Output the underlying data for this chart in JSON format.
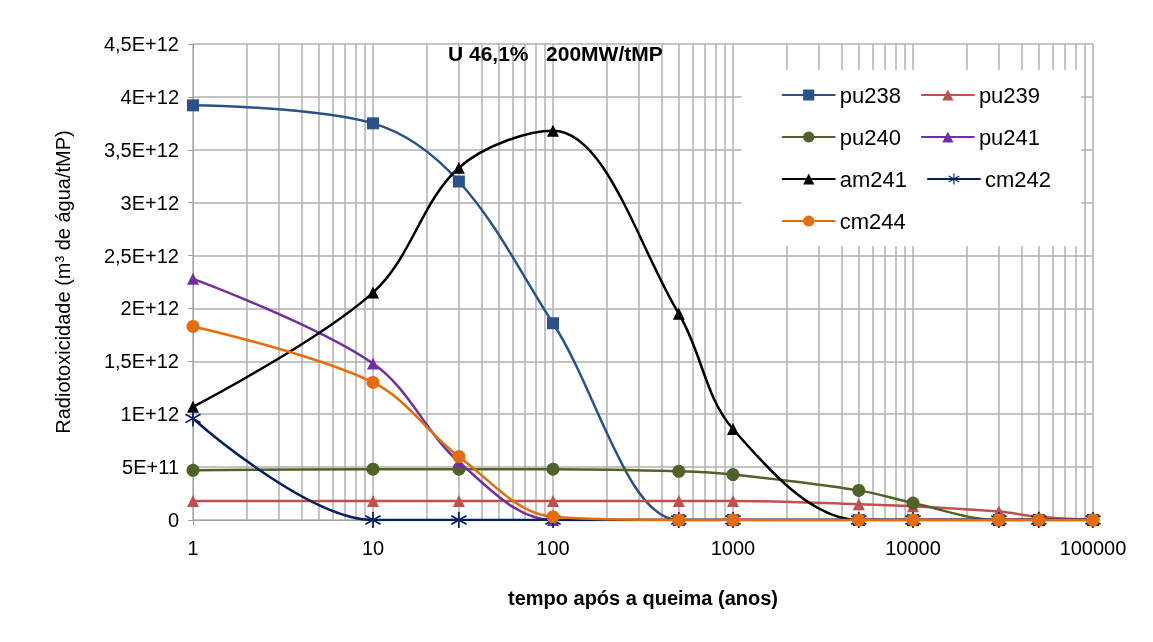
{
  "chart_data": {
    "type": "line",
    "title": "U 46,1%   200MW/tMP",
    "xlabel": "tempo após a queima (anos)",
    "ylabel": "Radiotoxicidade (m³ de água/tMP)",
    "x": [
      1,
      10,
      30,
      100,
      500,
      1000,
      5000,
      10000,
      30000,
      50000,
      100000
    ],
    "series": [
      {
        "name": "pu238",
        "color": "#2a5289",
        "marker": "square",
        "values": [
          3920000000000.0,
          3750000000000.0,
          3200000000000.0,
          1860000000000.0,
          0,
          0,
          0,
          0,
          0,
          0,
          0
        ]
      },
      {
        "name": "pu239",
        "color": "#c0504d",
        "marker": "triangle",
        "values": [
          180000000000.0,
          180000000000.0,
          180000000000.0,
          180000000000.0,
          180000000000.0,
          180000000000.0,
          150000000000.0,
          130000000000.0,
          80000000000.0,
          30000000000.0,
          0
        ]
      },
      {
        "name": "pu240",
        "color": "#4f6228",
        "marker": "circle",
        "values": [
          470000000000.0,
          480000000000.0,
          480000000000.0,
          480000000000.0,
          460000000000.0,
          430000000000.0,
          280000000000.0,
          160000000000.0,
          0,
          0,
          0
        ]
      },
      {
        "name": "pu241",
        "color": "#7030a0",
        "marker": "triangle",
        "values": [
          2280000000000.0,
          1480000000000.0,
          550000000000.0,
          0,
          0,
          0,
          0,
          0,
          0,
          0,
          0
        ]
      },
      {
        "name": "am241",
        "color": "#000000",
        "marker": "triangle",
        "values": [
          1070000000000.0,
          2150000000000.0,
          3330000000000.0,
          3680000000000.0,
          1950000000000.0,
          860000000000.0,
          0,
          0,
          0,
          0,
          0
        ]
      },
      {
        "name": "cm242",
        "color": "#002060",
        "marker": "cross",
        "values": [
          960000000000.0,
          0,
          0,
          0,
          0,
          0,
          0,
          0,
          0,
          0,
          0
        ]
      },
      {
        "name": "cm244",
        "color": "#e46c0a",
        "marker": "circle",
        "values": [
          1830000000000.0,
          1300000000000.0,
          600000000000.0,
          30000000000.0,
          0,
          0,
          0,
          0,
          0,
          0,
          0
        ]
      }
    ],
    "log": "x",
    "xlim": [
      1,
      100000
    ],
    "xticks": [
      1,
      10,
      100,
      1000,
      10000,
      100000
    ],
    "ylim": [
      0,
      4500000000000.0
    ],
    "yticks": [
      0,
      {
        "value": 500000000000.0,
        "label": "5E+11"
      },
      {
        "value": 1000000000000.0,
        "label": "1E+12"
      },
      {
        "value": 1500000000000.0,
        "label": "1,5E+12"
      },
      {
        "value": 2000000000000.0,
        "label": "2E+12"
      },
      {
        "value": 2500000000000.0,
        "label": "2,5E+12"
      },
      {
        "value": 3000000000000.0,
        "label": "3E+12"
      },
      {
        "value": 3500000000000.0,
        "label": "3,5E+12"
      },
      {
        "value": 4000000000000.0,
        "label": "4E+12"
      },
      {
        "value": 4500000000000.0,
        "label": "4,5E+12"
      }
    ],
    "grid": true,
    "legend": "top right",
    "line_style": "solid"
  }
}
